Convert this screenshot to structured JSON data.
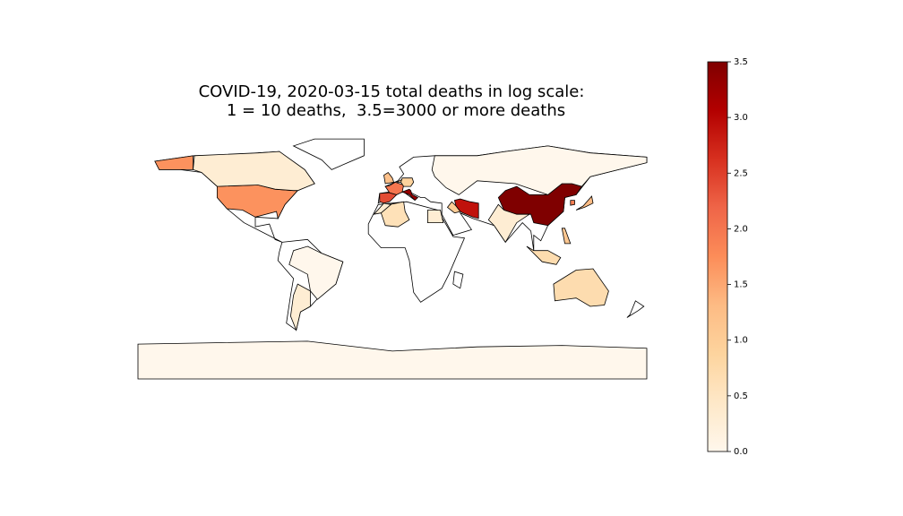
{
  "chart_data": {
    "type": "choropleth",
    "title": [
      "COVID-19, 2020-03-15 total deaths in log scale:",
      "1 = 10 deaths,  3.5=3000 or more deaths"
    ],
    "values": [
      3.5,
      3.3,
      2.9,
      2.4,
      2.0,
      1.7,
      1.9,
      1.3,
      1.2,
      1.0,
      0.9,
      0.7,
      1.1,
      0.7,
      1.0,
      0.3,
      0.6,
      0.3,
      0.3,
      0.3,
      0.3,
      0,
      0,
      0
    ],
    "colormap": [
      "#fff7ec",
      "#fee8c8",
      "#fdd49e",
      "#fdbb84",
      "#fc8d59",
      "#ef6548",
      "#d7301f",
      "#b30000",
      "#7f0000"
    ],
    "clim": [
      0,
      3.5
    ],
    "cticks": [
      {
        "value": 0,
        "label": "0.0"
      },
      {
        "value": 0.5,
        "label": "0.5"
      },
      {
        "value": 1,
        "label": "1.0"
      },
      {
        "value": 1.5,
        "label": "1.5"
      },
      {
        "value": 2,
        "label": "2.0"
      },
      {
        "value": 2.5,
        "label": "2.5"
      },
      {
        "value": 3,
        "label": "3.0"
      },
      {
        "value": 3.5,
        "label": "3.5"
      }
    ]
  }
}
